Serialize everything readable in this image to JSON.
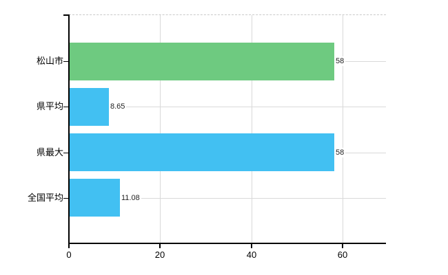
{
  "chart_data": {
    "type": "bar",
    "orientation": "horizontal",
    "title": "",
    "xlabel": "",
    "ylabel": "",
    "categories": [
      "松山市",
      "県平均",
      "県最大",
      "全国平均"
    ],
    "values": [
      58,
      8.65,
      58,
      11.08
    ],
    "value_labels": [
      "58",
      "8.65",
      "58",
      "11.08"
    ],
    "bar_colors": [
      "#6eca80",
      "#42c0f2",
      "#42c0f2",
      "#42c0f2"
    ],
    "x_ticks": [
      0,
      20,
      40,
      60
    ],
    "x_tick_labels": [
      "0",
      "20",
      "40",
      "60"
    ],
    "xlim": [
      0,
      69.5
    ],
    "grid": true,
    "legend": false
  },
  "colors": {
    "background": "#ffffff",
    "axis": "#000000",
    "gridline": "#d9d9d9",
    "top_dashed_border": "#c9c9c9",
    "green_bar": "#6eca80",
    "blue_bar": "#42c0f2",
    "value_label_text": "#222222",
    "tick_label_text": "#000000"
  }
}
